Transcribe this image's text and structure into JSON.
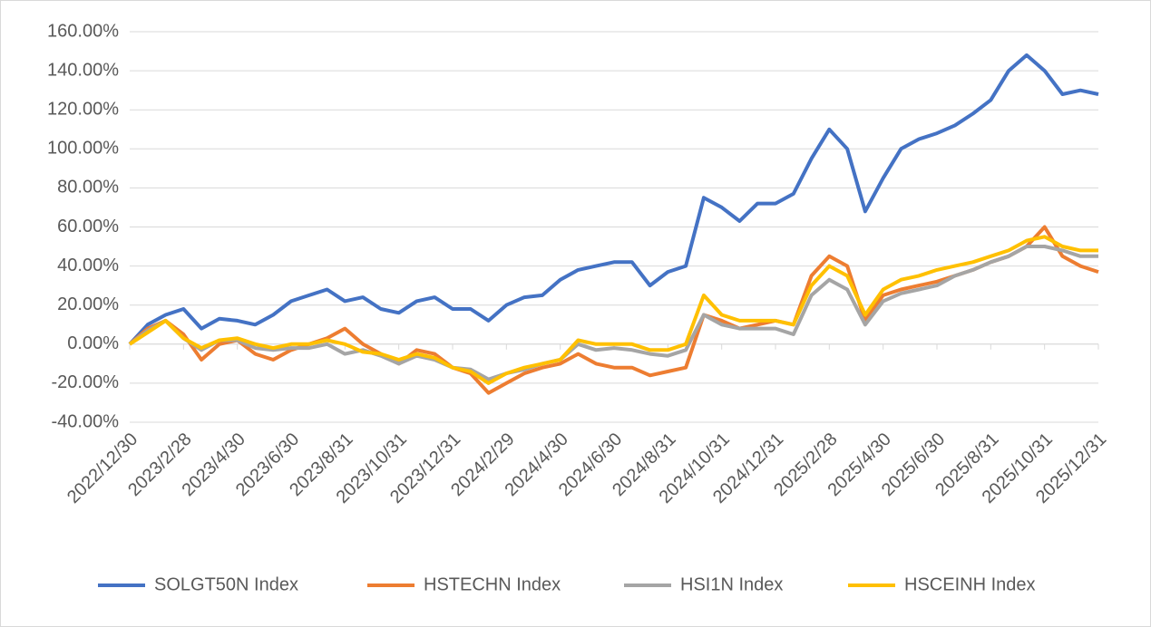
{
  "chart_data": {
    "type": "line",
    "categories": [
      "2022/12/30",
      null,
      null,
      "2023/2/28",
      null,
      null,
      "2023/4/30",
      null,
      null,
      "2023/6/30",
      null,
      null,
      "2023/8/31",
      null,
      null,
      "2023/10/31",
      null,
      null,
      "2023/12/31",
      null,
      null,
      "2024/2/29",
      null,
      null,
      "2024/4/30",
      null,
      null,
      "2024/6/30",
      null,
      null,
      "2024/8/31",
      null,
      null,
      "2024/10/31",
      null,
      null,
      "2024/12/31",
      null,
      null,
      "2025/2/28",
      null,
      null,
      "2025/4/30",
      null,
      null,
      "2025/6/30",
      null,
      null,
      "2025/8/31",
      null,
      null,
      "2025/10/31",
      null,
      null,
      "2025/12/31"
    ],
    "series": [
      {
        "name": "SOLGT50N Index",
        "color": "#4472c4",
        "values": [
          0,
          10,
          15,
          18,
          8,
          13,
          12,
          10,
          15,
          22,
          25,
          28,
          22,
          24,
          18,
          16,
          22,
          24,
          18,
          18,
          12,
          20,
          24,
          25,
          33,
          38,
          40,
          42,
          42,
          30,
          37,
          40,
          75,
          70,
          63,
          72,
          72,
          77,
          95,
          110,
          100,
          68,
          85,
          100,
          105,
          108,
          112,
          118,
          125,
          140,
          148,
          140,
          128,
          130,
          128
        ]
      },
      {
        "name": "HSTECHN Index",
        "color": "#ed7d31",
        "values": [
          0,
          8,
          12,
          5,
          -8,
          0,
          2,
          -5,
          -8,
          -3,
          0,
          3,
          8,
          0,
          -5,
          -10,
          -3,
          -5,
          -12,
          -15,
          -25,
          -20,
          -15,
          -12,
          -10,
          -5,
          -10,
          -12,
          -12,
          -16,
          -14,
          -12,
          15,
          12,
          8,
          10,
          12,
          10,
          35,
          45,
          40,
          12,
          25,
          28,
          30,
          32,
          35,
          38,
          42,
          45,
          50,
          60,
          45,
          40,
          37
        ]
      },
      {
        "name": "HSI1N Index",
        "color": "#a5a5a5",
        "values": [
          0,
          7,
          12,
          3,
          -3,
          2,
          2,
          -2,
          -3,
          -2,
          -2,
          0,
          -5,
          -3,
          -6,
          -10,
          -6,
          -8,
          -12,
          -13,
          -18,
          -15,
          -13,
          -10,
          -8,
          0,
          -3,
          -2,
          -3,
          -5,
          -6,
          -3,
          15,
          10,
          8,
          8,
          8,
          5,
          25,
          33,
          28,
          10,
          22,
          26,
          28,
          30,
          35,
          38,
          42,
          45,
          50,
          50,
          48,
          45,
          45
        ]
      },
      {
        "name": "HSCEINH Index",
        "color": "#ffc000",
        "values": [
          0,
          6,
          12,
          3,
          -2,
          2,
          3,
          0,
          -2,
          0,
          0,
          2,
          0,
          -4,
          -5,
          -8,
          -5,
          -7,
          -12,
          -14,
          -20,
          -15,
          -12,
          -10,
          -8,
          2,
          0,
          0,
          0,
          -3,
          -3,
          0,
          25,
          15,
          12,
          12,
          12,
          10,
          30,
          40,
          35,
          15,
          28,
          33,
          35,
          38,
          40,
          42,
          45,
          48,
          53,
          55,
          50,
          48,
          48
        ]
      }
    ],
    "ylim": [
      -40,
      160
    ],
    "yticks": [
      {
        "value": -40,
        "label": "-40.00%"
      },
      {
        "value": -20,
        "label": "-20.00%"
      },
      {
        "value": 0,
        "label": "0.00%"
      },
      {
        "value": 20,
        "label": "20.00%"
      },
      {
        "value": 40,
        "label": "40.00%"
      },
      {
        "value": 60,
        "label": "60.00%"
      },
      {
        "value": 80,
        "label": "80.00%"
      },
      {
        "value": 100,
        "label": "100.00%"
      },
      {
        "value": 120,
        "label": "120.00%"
      },
      {
        "value": 140,
        "label": "140.00%"
      },
      {
        "value": 160,
        "label": "160.00%"
      }
    ],
    "grid": true,
    "legend": "bottom"
  }
}
